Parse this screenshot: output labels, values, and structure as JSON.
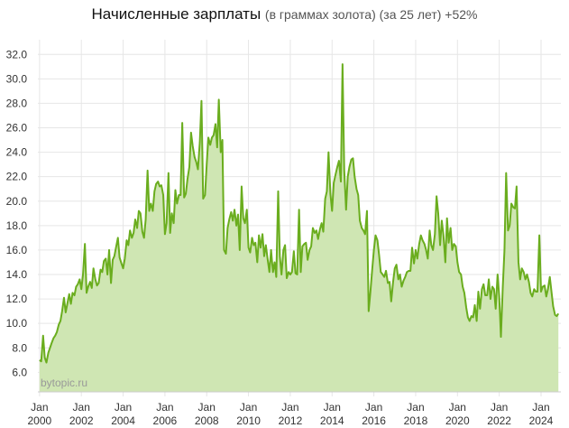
{
  "chart_data": {
    "type": "area",
    "title": "Начисленные зарплаты",
    "subtitle": "(в граммах золота) (за 25 лет) +52%",
    "watermark": "bytopic.ru",
    "xlabel": "",
    "ylabel": "",
    "ylim": [
      4.4,
      33.2
    ],
    "xlim": [
      1999.92,
      2024.95
    ],
    "grid": true,
    "colors": {
      "line": "#6aad1e",
      "fill": "#cfe6b3",
      "grid": "#e6e6e6",
      "axis": "#cccccc"
    },
    "y_ticks": [
      "6.0",
      "8.0",
      "10.0",
      "12.0",
      "14.0",
      "16.0",
      "18.0",
      "20.0",
      "22.0",
      "24.0",
      "26.0",
      "28.0",
      "30.0",
      "32.0"
    ],
    "x_ticks": [
      {
        "month": "Jan",
        "year": "2000",
        "x": 2000
      },
      {
        "month": "Jan",
        "year": "2002",
        "x": 2002
      },
      {
        "month": "Jan",
        "year": "2004",
        "x": 2004
      },
      {
        "month": "Jan",
        "year": "2006",
        "x": 2006
      },
      {
        "month": "Jan",
        "year": "2008",
        "x": 2008
      },
      {
        "month": "Jan",
        "year": "2010",
        "x": 2010
      },
      {
        "month": "Jan",
        "year": "2012",
        "x": 2012
      },
      {
        "month": "Jan",
        "year": "2014",
        "x": 2014
      },
      {
        "month": "Jan",
        "year": "2016",
        "x": 2016
      },
      {
        "month": "Jan",
        "year": "2018",
        "x": 2018
      },
      {
        "month": "Jan",
        "year": "2020",
        "x": 2020
      },
      {
        "month": "Jan",
        "year": "2022",
        "x": 2022
      },
      {
        "month": "Jan",
        "year": "2024",
        "x": 2024
      }
    ],
    "x": [
      2000.0,
      2000.08,
      2000.17,
      2000.25,
      2000.33,
      2000.42,
      2000.5,
      2000.58,
      2000.67,
      2000.75,
      2000.83,
      2000.92,
      2001.0,
      2001.08,
      2001.17,
      2001.25,
      2001.33,
      2001.42,
      2001.5,
      2001.58,
      2001.67,
      2001.75,
      2001.83,
      2001.92,
      2002.0,
      2002.08,
      2002.17,
      2002.25,
      2002.33,
      2002.42,
      2002.5,
      2002.58,
      2002.67,
      2002.75,
      2002.83,
      2002.92,
      2003.0,
      2003.08,
      2003.17,
      2003.25,
      2003.33,
      2003.42,
      2003.5,
      2003.58,
      2003.67,
      2003.75,
      2003.83,
      2003.92,
      2004.0,
      2004.08,
      2004.17,
      2004.25,
      2004.33,
      2004.42,
      2004.5,
      2004.58,
      2004.67,
      2004.75,
      2004.83,
      2004.92,
      2005.0,
      2005.08,
      2005.17,
      2005.25,
      2005.33,
      2005.42,
      2005.5,
      2005.58,
      2005.67,
      2005.75,
      2005.83,
      2005.92,
      2006.0,
      2006.08,
      2006.17,
      2006.25,
      2006.33,
      2006.42,
      2006.5,
      2006.58,
      2006.67,
      2006.75,
      2006.83,
      2006.92,
      2007.0,
      2007.08,
      2007.17,
      2007.25,
      2007.33,
      2007.42,
      2007.5,
      2007.58,
      2007.67,
      2007.75,
      2007.83,
      2007.92,
      2008.0,
      2008.08,
      2008.17,
      2008.25,
      2008.33,
      2008.42,
      2008.5,
      2008.58,
      2008.67,
      2008.75,
      2008.83,
      2008.92,
      2009.0,
      2009.08,
      2009.17,
      2009.25,
      2009.33,
      2009.42,
      2009.5,
      2009.58,
      2009.67,
      2009.75,
      2009.83,
      2009.92,
      2010.0,
      2010.08,
      2010.17,
      2010.25,
      2010.33,
      2010.42,
      2010.5,
      2010.58,
      2010.67,
      2010.75,
      2010.83,
      2010.92,
      2011.0,
      2011.08,
      2011.17,
      2011.25,
      2011.33,
      2011.42,
      2011.5,
      2011.58,
      2011.67,
      2011.75,
      2011.83,
      2011.92,
      2012.0,
      2012.08,
      2012.17,
      2012.25,
      2012.33,
      2012.42,
      2012.5,
      2012.58,
      2012.67,
      2012.75,
      2012.83,
      2012.92,
      2013.0,
      2013.08,
      2013.17,
      2013.25,
      2013.33,
      2013.42,
      2013.5,
      2013.58,
      2013.67,
      2013.75,
      2013.83,
      2013.92,
      2014.0,
      2014.08,
      2014.17,
      2014.25,
      2014.33,
      2014.42,
      2014.5,
      2014.58,
      2014.67,
      2014.75,
      2014.83,
      2014.92,
      2015.0,
      2015.08,
      2015.17,
      2015.25,
      2015.33,
      2015.42,
      2015.5,
      2015.58,
      2015.67,
      2015.75,
      2015.83,
      2015.92,
      2016.0,
      2016.08,
      2016.17,
      2016.25,
      2016.33,
      2016.42,
      2016.5,
      2016.58,
      2016.67,
      2016.75,
      2016.83,
      2016.92,
      2017.0,
      2017.08,
      2017.17,
      2017.25,
      2017.33,
      2017.42,
      2017.5,
      2017.58,
      2017.67,
      2017.75,
      2017.83,
      2017.92,
      2018.0,
      2018.08,
      2018.17,
      2018.25,
      2018.33,
      2018.42,
      2018.5,
      2018.58,
      2018.67,
      2018.75,
      2018.83,
      2018.92,
      2019.0,
      2019.08,
      2019.17,
      2019.25,
      2019.33,
      2019.42,
      2019.5,
      2019.58,
      2019.67,
      2019.75,
      2019.83,
      2019.92,
      2020.0,
      2020.08,
      2020.17,
      2020.25,
      2020.33,
      2020.42,
      2020.5,
      2020.58,
      2020.67,
      2020.75,
      2020.83,
      2020.92,
      2021.0,
      2021.08,
      2021.17,
      2021.25,
      2021.33,
      2021.42,
      2021.5,
      2021.58,
      2021.67,
      2021.75,
      2021.83,
      2021.92,
      2022.0,
      2022.08,
      2022.17,
      2022.25,
      2022.33,
      2022.42,
      2022.5,
      2022.58,
      2022.67,
      2022.75,
      2022.83,
      2022.92,
      2023.0,
      2023.08,
      2023.17,
      2023.25,
      2023.33,
      2023.42,
      2023.5,
      2023.58,
      2023.67,
      2023.75,
      2023.83,
      2023.92,
      2024.0,
      2024.08,
      2024.17,
      2024.25,
      2024.33,
      2024.42,
      2024.5,
      2024.58,
      2024.67,
      2024.75,
      2024.83
    ],
    "series": [
      {
        "values": [
          7.0,
          6.9,
          9.0,
          7.2,
          6.8,
          7.6,
          8.0,
          8.4,
          8.8,
          9.0,
          9.3,
          9.9,
          10.2,
          11.0,
          12.1,
          10.9,
          11.6,
          12.4,
          11.6,
          12.5,
          12.3,
          13.0,
          13.2,
          13.6,
          12.8,
          14.0,
          16.5,
          12.5,
          13.0,
          13.4,
          12.9,
          14.5,
          13.6,
          13.1,
          13.3,
          14.4,
          14.2,
          15.1,
          15.3,
          14.0,
          16.0,
          13.3,
          15.2,
          15.5,
          16.3,
          17.0,
          15.4,
          14.9,
          14.5,
          15.3,
          16.8,
          16.4,
          17.6,
          17.0,
          17.4,
          18.5,
          17.8,
          19.2,
          19.0,
          17.5,
          17.0,
          18.5,
          22.5,
          19.2,
          19.8,
          19.2,
          20.8,
          21.4,
          21.6,
          21.2,
          21.3,
          20.5,
          17.3,
          18.2,
          22.3,
          17.4,
          19.0,
          18.2,
          20.9,
          19.8,
          20.5,
          20.5,
          26.4,
          20.3,
          20.6,
          21.8,
          22.8,
          25.6,
          24.5,
          23.6,
          23.2,
          22.6,
          24.8,
          28.2,
          20.2,
          20.5,
          23.0,
          25.2,
          24.6,
          25.2,
          25.4,
          26.3,
          24.4,
          28.3,
          24.0,
          25.0,
          16.0,
          15.7,
          17.8,
          18.5,
          19.1,
          18.4,
          19.3,
          18.0,
          18.9,
          16.0,
          21.2,
          18.6,
          18.2,
          19.3,
          16.2,
          15.8,
          17.0,
          16.4,
          16.6,
          15.0,
          17.2,
          16.2,
          17.3,
          15.5,
          16.4,
          15.2,
          14.2,
          16.0,
          14.2,
          15.0,
          13.8,
          20.8,
          15.5,
          14.0,
          16.0,
          16.4,
          13.7,
          14.2,
          14.0,
          14.2,
          15.9,
          14.1,
          14.0,
          19.3,
          14.2,
          16.3,
          16.5,
          16.6,
          15.2,
          16.0,
          16.3,
          17.8,
          17.4,
          17.6,
          16.9,
          17.7,
          18.2,
          17.5,
          20.2,
          20.8,
          24.0,
          20.6,
          19.2,
          21.5,
          22.2,
          22.8,
          23.3,
          21.6,
          31.2,
          22.6,
          19.3,
          22.0,
          22.8,
          23.4,
          23.5,
          22.0,
          21.0,
          20.5,
          18.4,
          17.8,
          17.6,
          17.3,
          19.2,
          11.0,
          12.5,
          14.4,
          16.0,
          17.2,
          16.8,
          15.6,
          14.2,
          14.0,
          13.8,
          14.3,
          13.3,
          13.4,
          11.8,
          13.4,
          14.5,
          14.8,
          13.6,
          14.0,
          13.0,
          13.5,
          13.8,
          14.2,
          14.3,
          14.3,
          16.2,
          14.9,
          16.0,
          15.3,
          16.5,
          17.2,
          16.8,
          16.5,
          16.0,
          15.3,
          17.6,
          16.4,
          16.0,
          17.3,
          20.4,
          19.0,
          16.4,
          18.4,
          17.2,
          15.0,
          18.6,
          16.6,
          17.8,
          16.0,
          16.5,
          16.3,
          15.0,
          14.2,
          14.0,
          13.0,
          12.5,
          11.3,
          10.5,
          10.2,
          10.6,
          10.5,
          11.5,
          10.2,
          12.6,
          11.2,
          12.8,
          13.2,
          12.3,
          12.3,
          13.6,
          12.0,
          13.0,
          12.8,
          11.2,
          14.0,
          12.2,
          8.9,
          13.0,
          16.0,
          22.3,
          17.6,
          18.0,
          19.8,
          19.5,
          19.4,
          21.2,
          15.0,
          13.6,
          14.5,
          14.2,
          13.6,
          14.0,
          13.4,
          12.5,
          12.2,
          12.8,
          12.6,
          12.6,
          17.2,
          12.6,
          13.0,
          13.1,
          12.2,
          12.8,
          13.8,
          12.6,
          11.4,
          10.7,
          10.6,
          10.8
        ]
      }
    ]
  }
}
